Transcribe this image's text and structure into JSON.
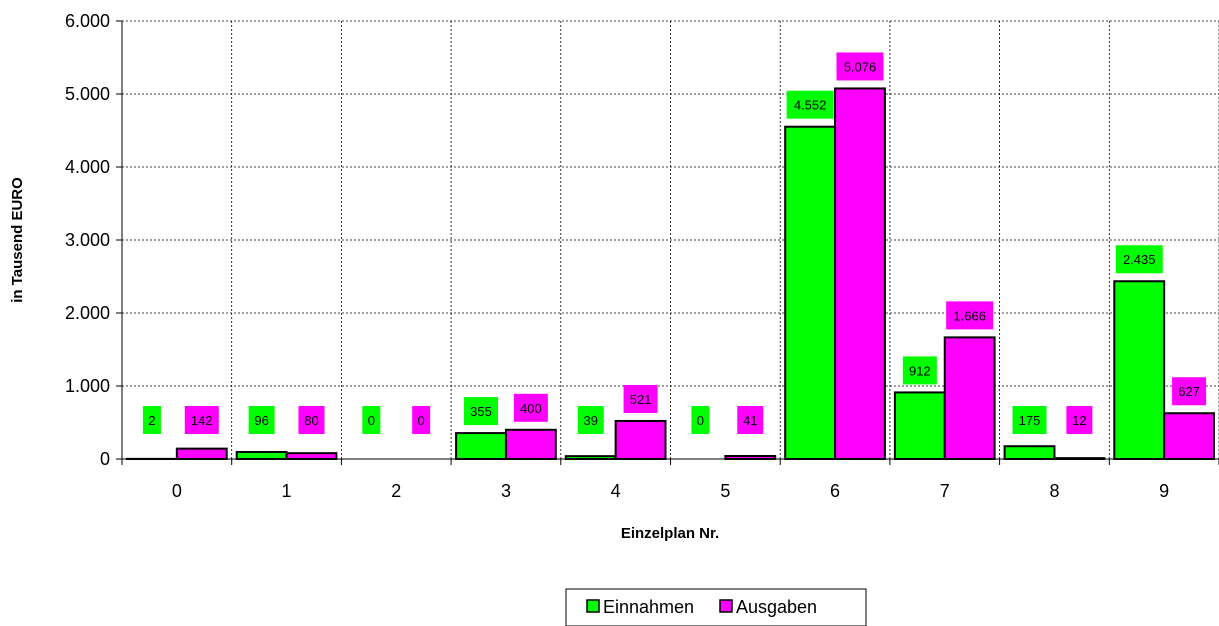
{
  "chart_data": {
    "type": "bar",
    "categories": [
      "0",
      "1",
      "2",
      "3",
      "4",
      "5",
      "6",
      "7",
      "8",
      "9"
    ],
    "series": [
      {
        "name": "Einnahmen",
        "color": "#00FF00",
        "values": [
          2,
          96,
          0,
          355,
          39,
          0,
          4552,
          912,
          175,
          2435
        ],
        "labels": [
          "2",
          "96",
          "0",
          "355",
          "39",
          "0",
          "4.552",
          "912",
          "175",
          "2.435"
        ]
      },
      {
        "name": "Ausgaben",
        "color": "#FF00FF",
        "values": [
          142,
          80,
          0,
          400,
          521,
          41,
          5076,
          1666,
          12,
          627
        ],
        "labels": [
          "142",
          "80",
          "0",
          "400",
          "521",
          "41",
          "5.076",
          "1.666",
          "12",
          "627"
        ]
      }
    ],
    "xlabel": "Einzelplan Nr.",
    "ylabel": "in Tausend EURO",
    "ylim": [
      0,
      6000
    ],
    "yticks": [
      0,
      1000,
      2000,
      3000,
      4000,
      5000,
      6000
    ],
    "ytick_labels": [
      "0",
      "1.000",
      "2.000",
      "3.000",
      "4.000",
      "5.000",
      "6.000"
    ],
    "grid": true,
    "legend_position": "bottom-center"
  }
}
